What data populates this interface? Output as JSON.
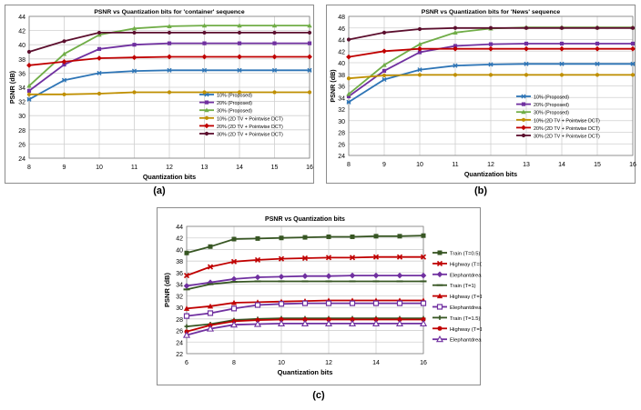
{
  "captions": [
    "(a)",
    "(b)",
    "(c)"
  ],
  "chart_data": [
    {
      "type": "line",
      "title": "PSNR vs Quantization bits for 'container' sequence",
      "xlabel": "Quantization bits",
      "ylabel": "PSNR (dB)",
      "xlim": [
        8,
        16
      ],
      "ylim": [
        24,
        44
      ],
      "x_ticks": [
        8,
        9,
        10,
        11,
        12,
        13,
        14,
        15,
        16
      ],
      "y_ticks": [
        24,
        26,
        28,
        30,
        32,
        34,
        36,
        38,
        40,
        42,
        44
      ],
      "grid": true,
      "legend_position": "right",
      "x": [
        8,
        9,
        10,
        11,
        12,
        13,
        14,
        15,
        16
      ],
      "series": [
        {
          "name": "10% (Proposed)",
          "color": "#2e75b6",
          "marker": "star",
          "values": [
            32.3,
            35.0,
            36.0,
            36.3,
            36.4,
            36.4,
            36.4,
            36.4,
            36.4
          ]
        },
        {
          "name": "20% (Proposed)",
          "color": "#7030a0",
          "marker": "square",
          "values": [
            33.5,
            37.2,
            39.4,
            40.0,
            40.2,
            40.2,
            40.2,
            40.2,
            40.2
          ]
        },
        {
          "name": "30% (Proposed)",
          "color": "#70ad47",
          "marker": "triangle",
          "values": [
            34.2,
            38.7,
            41.4,
            42.3,
            42.6,
            42.7,
            42.7,
            42.7,
            42.7
          ]
        },
        {
          "name": "10% (2D TV + Pointwise DCT)",
          "color": "#bf8f00",
          "marker": "circle",
          "values": [
            33.0,
            33.0,
            33.1,
            33.3,
            33.3,
            33.3,
            33.3,
            33.3,
            33.3
          ]
        },
        {
          "name": "20% (2D TV + Pointwise DCT)",
          "color": "#c00000",
          "marker": "diamond",
          "values": [
            37.1,
            37.6,
            38.1,
            38.2,
            38.3,
            38.3,
            38.3,
            38.3,
            38.3
          ]
        },
        {
          "name": "30% (2D TV + Pointwise DCT)",
          "color": "#5c0f2e",
          "marker": "circle",
          "values": [
            39.0,
            40.5,
            41.7,
            41.7,
            41.7,
            41.7,
            41.7,
            41.7,
            41.7
          ]
        }
      ]
    },
    {
      "type": "line",
      "title": "PSNR vs Quantization bits for 'News' sequence",
      "xlabel": "Quantization bits",
      "ylabel": "PSNR (dB)",
      "xlim": [
        8,
        16
      ],
      "ylim": [
        24,
        48
      ],
      "x_ticks": [
        8,
        9,
        10,
        11,
        12,
        13,
        14,
        15,
        16
      ],
      "y_ticks": [
        24,
        26,
        28,
        30,
        32,
        34,
        36,
        38,
        40,
        42,
        44,
        46,
        48
      ],
      "grid": true,
      "legend_position": "right",
      "x": [
        8,
        9,
        10,
        11,
        12,
        13,
        14,
        15,
        16
      ],
      "series": [
        {
          "name": "10% (Proposed)",
          "color": "#2e75b6",
          "marker": "star",
          "values": [
            33.2,
            37.1,
            38.8,
            39.5,
            39.7,
            39.8,
            39.8,
            39.8,
            39.8
          ]
        },
        {
          "name": "20% (Proposed)",
          "color": "#7030a0",
          "marker": "square",
          "values": [
            34.2,
            38.6,
            41.8,
            42.9,
            43.2,
            43.3,
            43.3,
            43.3,
            43.3
          ]
        },
        {
          "name": "30% (Proposed)",
          "color": "#70ad47",
          "marker": "triangle",
          "values": [
            34.6,
            39.6,
            43.2,
            45.2,
            45.9,
            46.1,
            46.1,
            46.1,
            46.1
          ]
        },
        {
          "name": "10% (2D TV + Pointwise DCT)",
          "color": "#bf8f00",
          "marker": "circle",
          "values": [
            37.3,
            37.8,
            37.9,
            37.9,
            37.9,
            37.9,
            37.9,
            37.9,
            37.9
          ]
        },
        {
          "name": "20% (2D TV + Pointwise DCT)",
          "color": "#c00000",
          "marker": "diamond",
          "values": [
            41.0,
            42.0,
            42.4,
            42.4,
            42.4,
            42.4,
            42.4,
            42.4,
            42.4
          ]
        },
        {
          "name": "30% (2D TV + Pointwise DCT)",
          "color": "#5c0f2e",
          "marker": "circle",
          "values": [
            44.0,
            45.2,
            45.8,
            46.0,
            46.0,
            46.0,
            46.0,
            46.0,
            46.0
          ]
        }
      ]
    },
    {
      "type": "line",
      "title": "PSNR vs Quantization bits",
      "xlabel": "Quantization bits",
      "ylabel": "PSNR (dB)",
      "xlim": [
        6,
        16
      ],
      "ylim": [
        22,
        44
      ],
      "x_ticks": [
        6,
        8,
        10,
        12,
        14,
        16
      ],
      "y_ticks": [
        22,
        24,
        26,
        28,
        30,
        32,
        34,
        36,
        38,
        40,
        42,
        44
      ],
      "grid": true,
      "legend_position": "right",
      "x": [
        6,
        7,
        8,
        9,
        10,
        11,
        12,
        13,
        14,
        15,
        16
      ],
      "series": [
        {
          "name": "Train (T=0.5)",
          "color": "#375623",
          "marker": "square",
          "values": [
            39.4,
            40.5,
            41.8,
            41.9,
            42.0,
            42.1,
            42.2,
            42.2,
            42.3,
            42.3,
            42.4
          ]
        },
        {
          "name": "Highway (T=0.5)",
          "color": "#c00000",
          "marker": "x",
          "values": [
            35.5,
            37.0,
            37.9,
            38.2,
            38.4,
            38.5,
            38.6,
            38.6,
            38.7,
            38.7,
            38.7
          ]
        },
        {
          "name": "Elephantdream (T=0.5)",
          "color": "#7030a0",
          "marker": "diamond",
          "values": [
            33.7,
            34.3,
            34.9,
            35.2,
            35.3,
            35.4,
            35.4,
            35.5,
            35.5,
            35.5,
            35.5
          ]
        },
        {
          "name": "Train (T=1)",
          "color": "#375623",
          "marker": "dash",
          "values": [
            33.1,
            34.0,
            34.4,
            34.5,
            34.5,
            34.5,
            34.5,
            34.5,
            34.5,
            34.5,
            34.5
          ]
        },
        {
          "name": "Highway (T=1)",
          "color": "#c00000",
          "marker": "triangle",
          "values": [
            29.8,
            30.2,
            30.8,
            30.9,
            31.0,
            31.1,
            31.2,
            31.2,
            31.2,
            31.2,
            31.2
          ]
        },
        {
          "name": "Elephantdream (T=1)",
          "color": "#7030a0",
          "marker": "square-open",
          "values": [
            28.5,
            29.0,
            29.8,
            30.4,
            30.6,
            30.7,
            30.7,
            30.7,
            30.7,
            30.7,
            30.7
          ]
        },
        {
          "name": "Train (T=1.5)",
          "color": "#375623",
          "marker": "plus",
          "values": [
            26.7,
            27.1,
            27.8,
            28.0,
            28.1,
            28.1,
            28.1,
            28.1,
            28.1,
            28.1,
            28.1
          ]
        },
        {
          "name": "Highway (T=1.5)",
          "color": "#c00000",
          "marker": "circle",
          "values": [
            25.8,
            26.9,
            27.6,
            27.8,
            27.9,
            27.9,
            27.9,
            27.9,
            27.9,
            27.9,
            27.9
          ]
        },
        {
          "name": "Elephantdream (T=1.5)",
          "color": "#7030a0",
          "marker": "triangle-open",
          "values": [
            25.2,
            26.3,
            27.0,
            27.1,
            27.2,
            27.2,
            27.2,
            27.2,
            27.2,
            27.2,
            27.2
          ]
        }
      ]
    }
  ]
}
